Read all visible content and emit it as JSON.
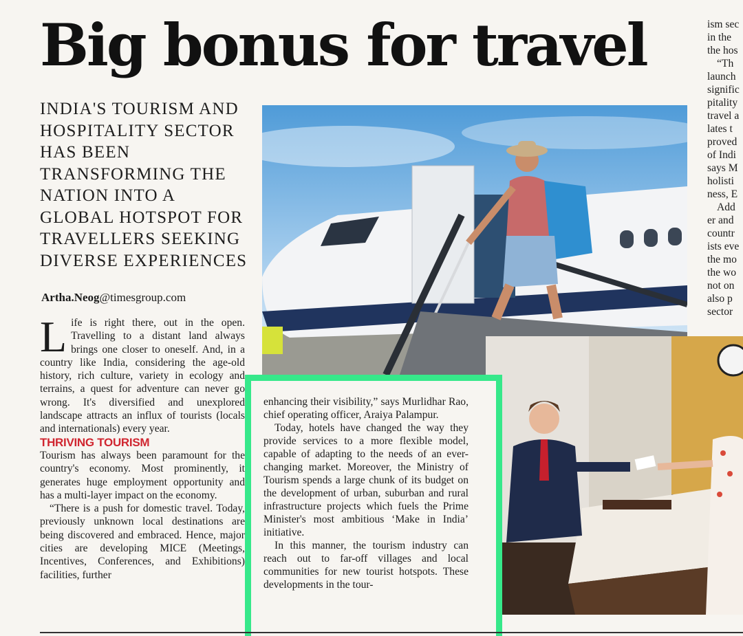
{
  "headline": "Big bonus for travel",
  "deck": "India's tourism and hospitality sector has been transforming the nation into a global hotspot for travellers seeking diverse experiences",
  "byline": {
    "name": "Artha.Neog",
    "domain": "@timesgroup.com"
  },
  "col1": {
    "dropcap": "L",
    "p1": "ife is right there, out in the open. Travelling to a distant land always brings one closer to oneself. And, in a country like India, considering the age-old history, rich culture, variety in ecology and terrains, a quest for adventure can never go wrong. It's diversified and unexplored landscape attracts an influx of tourists (locals and internationals) every year.",
    "subhead": "THRIVING TOURISM",
    "p2": "Tourism has always been paramount for the country's economy. Most prominently, it generates huge employment opportunity and has a multi-layer impact on the economy.",
    "p3": "“There is a push for domestic travel. Today, previously unknown local destinations are being discovered and embraced. Hence, major cities are developing MICE (Meetings, Incentives, Conferences, and Exhibitions) facilities, further"
  },
  "colmid": {
    "p1": "enhancing their visibility,” says Murlidhar Rao, chief operating officer, Araiya Palampur.",
    "p2": "Today, hotels have changed the way they provide services to a more flexible model, capable of adapting to the needs of an ever-changing market. Moreover, the Ministry of Tourism spends a large chunk of its budget on the development of urban, suburban and rural infrastructure projects which fuels the Prime Minister's most ambitious ‘Make in India’ initiative.",
    "p3": "In this manner, the tourism industry can reach out to far-off villages and local communities for new tourist hotspots. These developments in the tour-"
  },
  "col3_lines": [
    {
      "t": "ism sec",
      "i": false
    },
    {
      "t": "in the",
      "i": false
    },
    {
      "t": "the hos",
      "i": false
    },
    {
      "t": "“Th",
      "i": true
    },
    {
      "t": "launch",
      "i": false
    },
    {
      "t": "signific",
      "i": false
    },
    {
      "t": "pitality",
      "i": false
    },
    {
      "t": "travel a",
      "i": false
    },
    {
      "t": "lates t",
      "i": false
    },
    {
      "t": "proved",
      "i": false
    },
    {
      "t": "of Indi",
      "i": false
    },
    {
      "t": "says M",
      "i": false
    },
    {
      "t": "holisti",
      "i": false
    },
    {
      "t": "ness, E",
      "i": false
    },
    {
      "t": "Add",
      "i": true
    },
    {
      "t": "er and",
      "i": false
    },
    {
      "t": "countr",
      "i": false
    },
    {
      "t": "ists eve",
      "i": false
    },
    {
      "t": "the mo",
      "i": false
    },
    {
      "t": "the wo",
      "i": false
    },
    {
      "t": "not on",
      "i": false
    },
    {
      "t": "also p",
      "i": false
    },
    {
      "t": "sector",
      "i": false
    }
  ],
  "colors": {
    "subhead": "#d02630",
    "highlight": "#36e88a"
  }
}
